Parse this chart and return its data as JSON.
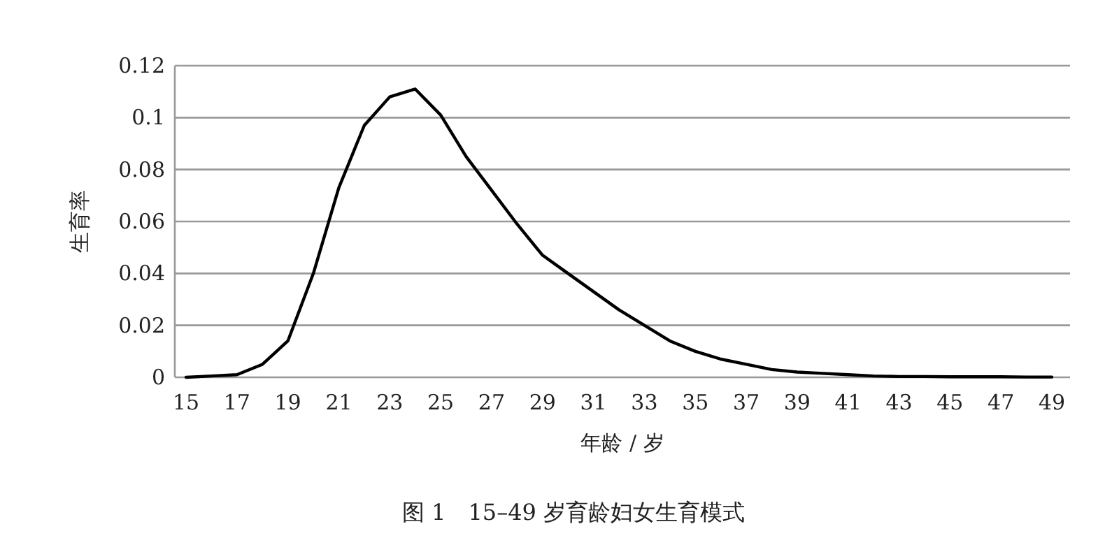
{
  "chart_data": {
    "type": "line",
    "title": "图 1　15–49 岁育龄妇女生育模式",
    "xlabel": "年龄 / 岁",
    "ylabel": "生育率",
    "categories": [
      "15",
      null,
      "17",
      null,
      "19",
      null,
      "21",
      null,
      "23",
      null,
      "25",
      null,
      "27",
      null,
      "29",
      null,
      "31",
      null,
      "33",
      null,
      "35",
      null,
      "37",
      null,
      "39",
      null,
      "41",
      null,
      "43",
      null,
      "45",
      null,
      "47",
      null,
      "49"
    ],
    "series": [
      {
        "color": "#000000",
        "values": [
          0.0,
          0.0005,
          0.001,
          0.005,
          0.014,
          0.04,
          0.073,
          0.097,
          0.108,
          0.111,
          0.101,
          0.085,
          0.072,
          0.059,
          0.047,
          0.04,
          0.033,
          0.026,
          0.02,
          0.014,
          0.01,
          0.007,
          0.005,
          0.003,
          0.002,
          0.0015,
          0.001,
          0.0005,
          0.0003,
          0.0003,
          0.0002,
          0.0002,
          0.0002,
          0.0001,
          0.0001
        ]
      }
    ],
    "ylim": [
      0,
      0.12
    ],
    "yticks": [
      0,
      0.02,
      0.04,
      0.06,
      0.08,
      0.1,
      0.12
    ],
    "grid": "y",
    "marker": "none",
    "line_style": "solid"
  }
}
